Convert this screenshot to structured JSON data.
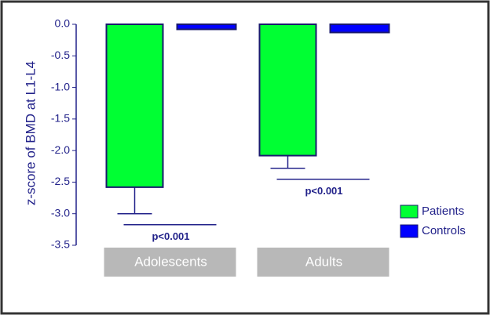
{
  "chart_data": {
    "type": "bar",
    "y_label": "z-score of BMD at L1-L4",
    "categories": [
      "Adolescents",
      "Adults"
    ],
    "series": [
      {
        "name": "Patients",
        "color": "#00ff33",
        "values": [
          -2.58,
          -2.08
        ],
        "errors": [
          0.42,
          0.2
        ]
      },
      {
        "name": "Controls",
        "color": "#0000ff",
        "values": [
          -0.08,
          -0.13
        ]
      }
    ],
    "annotations": [
      "p<0.001",
      "p<0.001"
    ],
    "ylim": [
      -3.5,
      0
    ],
    "yticks": [
      {
        "value": 0,
        "label": "0.0"
      },
      -0.5,
      {
        "value": -1,
        "label": "-1.0"
      },
      -1.5,
      {
        "value": -2,
        "label": "-2.0"
      },
      -2.5,
      {
        "value": -3,
        "label": "-3.0"
      },
      -3.5
    ],
    "legend": "right"
  }
}
